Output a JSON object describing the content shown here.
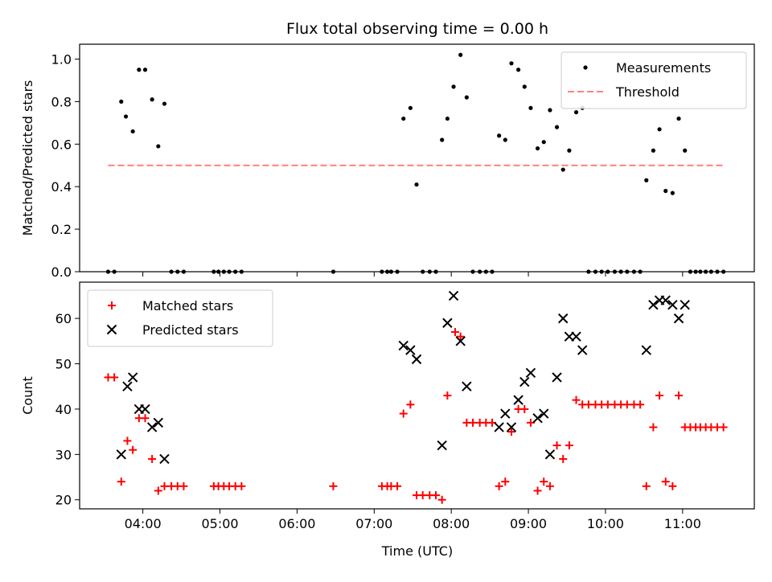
{
  "chart_data": {
    "title": "Flux total observing time = 0.00 h",
    "x_axis": {
      "label": "Time (UTC)",
      "unit": "hours",
      "range": [
        3.18,
        11.93
      ],
      "ticks": [
        4,
        5,
        6,
        7,
        8,
        9,
        10,
        11
      ],
      "tick_labels": [
        "04:00",
        "05:00",
        "06:00",
        "07:00",
        "08:00",
        "09:00",
        "10:00",
        "11:00"
      ]
    },
    "panels": [
      {
        "type": "scatter",
        "ylabel": "Matched/Predicted stars",
        "ylim": [
          0,
          1.07
        ],
        "yticks": [
          0.0,
          0.2,
          0.4,
          0.6,
          0.8,
          1.0
        ],
        "ytick_labels": [
          "0.0",
          "0.2",
          "0.4",
          "0.6",
          "0.8",
          "1.0"
        ],
        "legend_position": "top-right",
        "series": [
          {
            "name": "Measurements",
            "marker": "dot",
            "color": "#000000",
            "points": [
              [
                3.55,
                0
              ],
              [
                3.63,
                0
              ],
              [
                3.72,
                0.8
              ],
              [
                3.78,
                0.73
              ],
              [
                3.87,
                0.66
              ],
              [
                3.95,
                0.95
              ],
              [
                4.03,
                0.95
              ],
              [
                4.12,
                0.81
              ],
              [
                4.2,
                0.59
              ],
              [
                4.28,
                0.79
              ],
              [
                4.37,
                0
              ],
              [
                4.45,
                0
              ],
              [
                4.53,
                0
              ],
              [
                4.92,
                0
              ],
              [
                4.98,
                0
              ],
              [
                5.05,
                0
              ],
              [
                5.12,
                0
              ],
              [
                5.2,
                0
              ],
              [
                5.28,
                0
              ],
              [
                6.47,
                0
              ],
              [
                7.1,
                0
              ],
              [
                7.17,
                0
              ],
              [
                7.22,
                0
              ],
              [
                7.3,
                0
              ],
              [
                7.38,
                0.72
              ],
              [
                7.47,
                0.77
              ],
              [
                7.55,
                0.41
              ],
              [
                7.63,
                0
              ],
              [
                7.72,
                0
              ],
              [
                7.8,
                0
              ],
              [
                7.88,
                0.62
              ],
              [
                7.95,
                0.72
              ],
              [
                8.03,
                0.87
              ],
              [
                8.12,
                1.02
              ],
              [
                8.2,
                0.82
              ],
              [
                8.28,
                0
              ],
              [
                8.37,
                0
              ],
              [
                8.45,
                0
              ],
              [
                8.53,
                0
              ],
              [
                8.62,
                0.64
              ],
              [
                8.7,
                0.62
              ],
              [
                8.78,
                0.98
              ],
              [
                8.87,
                0.95
              ],
              [
                8.95,
                0.87
              ],
              [
                9.03,
                0.77
              ],
              [
                9.12,
                0.58
              ],
              [
                9.2,
                0.61
              ],
              [
                9.28,
                0.76
              ],
              [
                9.37,
                0.68
              ],
              [
                9.45,
                0.48
              ],
              [
                9.53,
                0.57
              ],
              [
                9.62,
                0.75
              ],
              [
                9.7,
                0.77
              ],
              [
                9.78,
                0
              ],
              [
                9.87,
                0
              ],
              [
                9.95,
                0
              ],
              [
                10.03,
                0
              ],
              [
                10.12,
                0
              ],
              [
                10.2,
                0
              ],
              [
                10.28,
                0
              ],
              [
                10.37,
                0
              ],
              [
                10.45,
                0
              ],
              [
                10.53,
                0.43
              ],
              [
                10.62,
                0.57
              ],
              [
                10.7,
                0.67
              ],
              [
                10.78,
                0.38
              ],
              [
                10.87,
                0.37
              ],
              [
                10.95,
                0.72
              ],
              [
                11.03,
                0.57
              ],
              [
                11.1,
                0
              ],
              [
                11.17,
                0
              ],
              [
                11.23,
                0
              ],
              [
                11.3,
                0
              ],
              [
                11.37,
                0
              ],
              [
                11.45,
                0
              ],
              [
                11.53,
                0
              ]
            ]
          },
          {
            "name": "Threshold",
            "marker": "dashed-line",
            "color": "#ff7f7f",
            "points": [
              [
                3.55,
                0.5
              ],
              [
                11.53,
                0.5
              ]
            ]
          }
        ]
      },
      {
        "type": "scatter",
        "ylabel": "Count",
        "ylim": [
          18,
          68
        ],
        "yticks": [
          20,
          30,
          40,
          50,
          60
        ],
        "ytick_labels": [
          "20",
          "30",
          "40",
          "50",
          "60"
        ],
        "legend_position": "top-left",
        "series": [
          {
            "name": "Matched stars",
            "marker": "plus",
            "color": "#ff0000",
            "points": [
              [
                3.55,
                47
              ],
              [
                3.63,
                47
              ],
              [
                3.72,
                24
              ],
              [
                3.8,
                33
              ],
              [
                3.87,
                31
              ],
              [
                3.95,
                38
              ],
              [
                4.03,
                38
              ],
              [
                4.12,
                29
              ],
              [
                4.2,
                22
              ],
              [
                4.28,
                23
              ],
              [
                4.37,
                23
              ],
              [
                4.45,
                23
              ],
              [
                4.53,
                23
              ],
              [
                4.92,
                23
              ],
              [
                4.98,
                23
              ],
              [
                5.05,
                23
              ],
              [
                5.12,
                23
              ],
              [
                5.2,
                23
              ],
              [
                5.28,
                23
              ],
              [
                6.47,
                23
              ],
              [
                7.1,
                23
              ],
              [
                7.17,
                23
              ],
              [
                7.22,
                23
              ],
              [
                7.3,
                23
              ],
              [
                7.38,
                39
              ],
              [
                7.47,
                41
              ],
              [
                7.55,
                21
              ],
              [
                7.63,
                21
              ],
              [
                7.72,
                21
              ],
              [
                7.8,
                21
              ],
              [
                7.88,
                20
              ],
              [
                7.95,
                43
              ],
              [
                8.05,
                57
              ],
              [
                8.12,
                56
              ],
              [
                8.2,
                37
              ],
              [
                8.28,
                37
              ],
              [
                8.37,
                37
              ],
              [
                8.45,
                37
              ],
              [
                8.53,
                37
              ],
              [
                8.62,
                23
              ],
              [
                8.7,
                24
              ],
              [
                8.78,
                35
              ],
              [
                8.87,
                40
              ],
              [
                8.95,
                40
              ],
              [
                9.03,
                37
              ],
              [
                9.12,
                22
              ],
              [
                9.2,
                24
              ],
              [
                9.28,
                23
              ],
              [
                9.37,
                32
              ],
              [
                9.45,
                29
              ],
              [
                9.53,
                32
              ],
              [
                9.62,
                42
              ],
              [
                9.7,
                41
              ],
              [
                9.78,
                41
              ],
              [
                9.87,
                41
              ],
              [
                9.95,
                41
              ],
              [
                10.03,
                41
              ],
              [
                10.12,
                41
              ],
              [
                10.2,
                41
              ],
              [
                10.28,
                41
              ],
              [
                10.37,
                41
              ],
              [
                10.45,
                41
              ],
              [
                10.53,
                23
              ],
              [
                10.62,
                36
              ],
              [
                10.7,
                43
              ],
              [
                10.78,
                24
              ],
              [
                10.87,
                23
              ],
              [
                10.95,
                43
              ],
              [
                11.03,
                36
              ],
              [
                11.1,
                36
              ],
              [
                11.17,
                36
              ],
              [
                11.23,
                36
              ],
              [
                11.3,
                36
              ],
              [
                11.37,
                36
              ],
              [
                11.45,
                36
              ],
              [
                11.53,
                36
              ]
            ]
          },
          {
            "name": "Predicted stars",
            "marker": "x",
            "color": "#000000",
            "points": [
              [
                3.72,
                30
              ],
              [
                3.8,
                45
              ],
              [
                3.87,
                47
              ],
              [
                3.95,
                40
              ],
              [
                4.03,
                40
              ],
              [
                4.12,
                36
              ],
              [
                4.2,
                37
              ],
              [
                4.28,
                29
              ],
              [
                7.38,
                54
              ],
              [
                7.47,
                53
              ],
              [
                7.55,
                51
              ],
              [
                7.88,
                32
              ],
              [
                7.95,
                59
              ],
              [
                8.03,
                65
              ],
              [
                8.12,
                55
              ],
              [
                8.2,
                45
              ],
              [
                8.62,
                36
              ],
              [
                8.7,
                39
              ],
              [
                8.78,
                36
              ],
              [
                8.87,
                42
              ],
              [
                8.95,
                46
              ],
              [
                9.03,
                48
              ],
              [
                9.12,
                38
              ],
              [
                9.2,
                39
              ],
              [
                9.28,
                30
              ],
              [
                9.37,
                47
              ],
              [
                9.45,
                60
              ],
              [
                9.53,
                56
              ],
              [
                9.62,
                56
              ],
              [
                9.7,
                53
              ],
              [
                10.53,
                53
              ],
              [
                10.62,
                63
              ],
              [
                10.7,
                64
              ],
              [
                10.78,
                64
              ],
              [
                10.87,
                63
              ],
              [
                10.95,
                60
              ],
              [
                11.03,
                63
              ]
            ]
          }
        ]
      }
    ]
  }
}
